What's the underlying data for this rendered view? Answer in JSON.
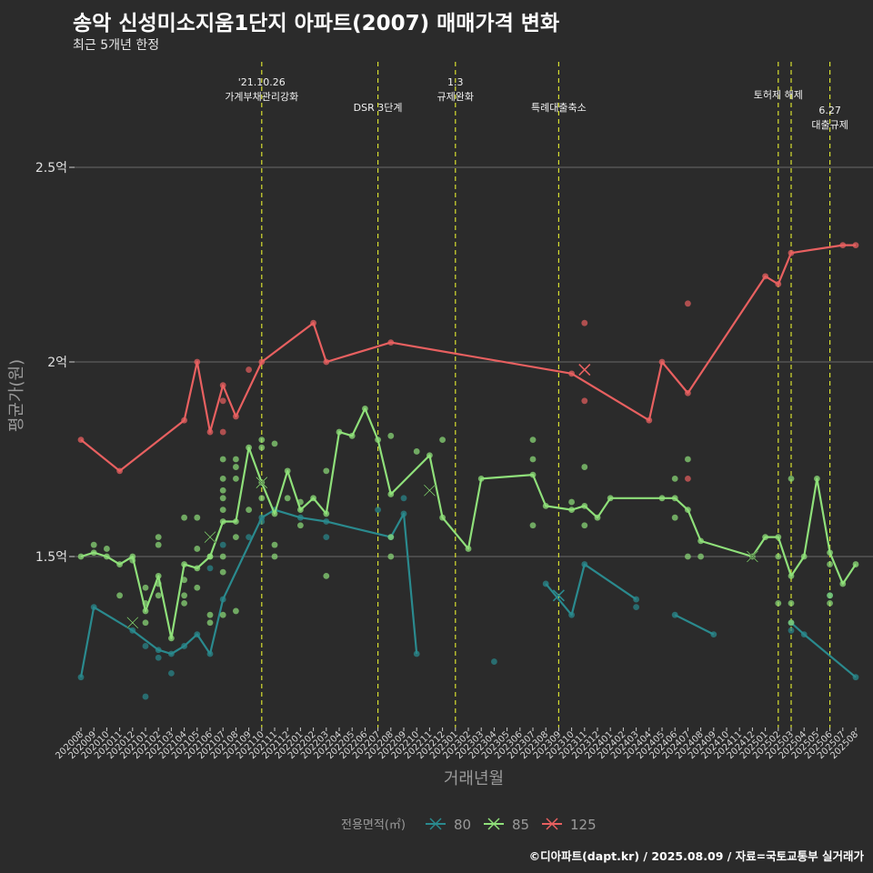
{
  "title": "송악 신성미소지움1단지 아파트(2007) 매매가격 변화",
  "subtitle": "최근 5개년 한정",
  "caption": "©디아파트(dapt.kr) / 2025.08.09 / 자료=국토교통부 실거래가",
  "chart_data": {
    "type": "line",
    "xlabel": "거래년월",
    "ylabel": "평균가(원)",
    "x_categories": [
      "202008",
      "202009",
      "202010",
      "202011",
      "202012",
      "202101",
      "202102",
      "202103",
      "202104",
      "202105",
      "202106",
      "202107",
      "202108",
      "202109",
      "202110",
      "202111",
      "202112",
      "202201",
      "202202",
      "202203",
      "202204",
      "202205",
      "202206",
      "202207",
      "202208",
      "202209",
      "202210",
      "202211",
      "202212",
      "202301",
      "202302",
      "202303",
      "202304",
      "202305",
      "202306",
      "202307",
      "202308",
      "202309",
      "202310",
      "202311",
      "202312",
      "202401",
      "202402",
      "202403",
      "202404",
      "202405",
      "202406",
      "202407",
      "202408",
      "202409",
      "202410",
      "202411",
      "202412",
      "202501",
      "202502",
      "202503",
      "202504",
      "202505",
      "202506",
      "202507",
      "202508"
    ],
    "y_ticks": [
      {
        "value": 1.5,
        "label": "1.5억"
      },
      {
        "value": 2.0,
        "label": "2억"
      },
      {
        "value": 2.5,
        "label": "2.5억"
      }
    ],
    "ylim": [
      1.07,
      2.75
    ],
    "grid": "horizontal",
    "legend": {
      "title": "전용면적(㎡)",
      "position": "bottom"
    },
    "series": [
      {
        "name": "80",
        "color": "#2a8a8e",
        "line": [
          [
            "202008",
            1.19
          ],
          [
            "202009",
            1.37
          ],
          [
            "202012",
            1.31
          ],
          [
            "202102",
            1.26
          ],
          [
            "202103",
            1.25
          ],
          [
            "202104",
            1.27
          ],
          [
            "202105",
            1.3
          ],
          [
            "202106",
            1.25
          ],
          [
            "202107",
            1.39
          ],
          [
            "202110",
            1.6
          ],
          [
            "202111",
            1.62
          ],
          [
            "202201",
            1.6
          ],
          [
            "202203",
            1.59
          ],
          [
            "202208",
            1.55
          ],
          [
            "202209",
            1.61
          ],
          [
            "202210",
            1.25
          ]
        ],
        "line2": [
          [
            "202308",
            1.43
          ],
          [
            "202310",
            1.35
          ],
          [
            "202311",
            1.48
          ],
          [
            "202403",
            1.39
          ]
        ],
        "line3": [
          [
            "202406",
            1.35
          ],
          [
            "202409",
            1.3
          ]
        ],
        "line4": [
          [
            "202503",
            1.33
          ],
          [
            "202504",
            1.3
          ],
          [
            "202508",
            1.19
          ]
        ],
        "points": [
          [
            "202101",
            1.27
          ],
          [
            "202101",
            1.14
          ],
          [
            "202102",
            1.24
          ],
          [
            "202103",
            1.2
          ],
          [
            "202106",
            1.47
          ],
          [
            "202107",
            1.53
          ],
          [
            "202109",
            1.55
          ],
          [
            "202110",
            1.59
          ],
          [
            "202203",
            1.55
          ],
          [
            "202207",
            1.62
          ],
          [
            "202209",
            1.65
          ],
          [
            "202304",
            1.23
          ],
          [
            "202403",
            1.37
          ],
          [
            "202503",
            1.31
          ],
          [
            "202506",
            1.4
          ]
        ],
        "mean_x": [
          [
            "202309",
            1.4
          ]
        ]
      },
      {
        "name": "85",
        "color": "#8fe07a",
        "line": [
          [
            "202008",
            1.5
          ],
          [
            "202009",
            1.51
          ],
          [
            "202010",
            1.5
          ],
          [
            "202011",
            1.48
          ],
          [
            "202012",
            1.5
          ],
          [
            "202101",
            1.36
          ],
          [
            "202102",
            1.45
          ],
          [
            "202103",
            1.29
          ],
          [
            "202104",
            1.48
          ],
          [
            "202105",
            1.47
          ],
          [
            "202106",
            1.5
          ],
          [
            "202107",
            1.59
          ],
          [
            "202108",
            1.59
          ],
          [
            "202109",
            1.78
          ],
          [
            "202110",
            1.69
          ],
          [
            "202111",
            1.61
          ],
          [
            "202112",
            1.72
          ],
          [
            "202201",
            1.62
          ],
          [
            "202202",
            1.65
          ],
          [
            "202203",
            1.61
          ],
          [
            "202204",
            1.82
          ],
          [
            "202205",
            1.81
          ],
          [
            "202206",
            1.88
          ],
          [
            "202207",
            1.8
          ],
          [
            "202208",
            1.66
          ],
          [
            "202211",
            1.76
          ],
          [
            "202212",
            1.6
          ],
          [
            "202302",
            1.52
          ],
          [
            "202303",
            1.7
          ],
          [
            "202307",
            1.71
          ],
          [
            "202308",
            1.63
          ],
          [
            "202310",
            1.62
          ],
          [
            "202311",
            1.63
          ],
          [
            "202312",
            1.6
          ],
          [
            "202401",
            1.65
          ],
          [
            "202405",
            1.65
          ],
          [
            "202406",
            1.65
          ],
          [
            "202407",
            1.62
          ],
          [
            "202408",
            1.54
          ],
          [
            "202412",
            1.5
          ],
          [
            "202501",
            1.55
          ],
          [
            "202502",
            1.55
          ],
          [
            "202503",
            1.45
          ],
          [
            "202504",
            1.5
          ],
          [
            "202505",
            1.7
          ],
          [
            "202506",
            1.51
          ],
          [
            "202507",
            1.43
          ],
          [
            "202508",
            1.48
          ]
        ],
        "points": [
          [
            "202009",
            1.53
          ],
          [
            "202010",
            1.52
          ],
          [
            "202011",
            1.4
          ],
          [
            "202012",
            1.49
          ],
          [
            "202101",
            1.33
          ],
          [
            "202101",
            1.38
          ],
          [
            "202101",
            1.42
          ],
          [
            "202102",
            1.55
          ],
          [
            "202102",
            1.53
          ],
          [
            "202102",
            1.43
          ],
          [
            "202102",
            1.4
          ],
          [
            "202104",
            1.6
          ],
          [
            "202104",
            1.44
          ],
          [
            "202104",
            1.4
          ],
          [
            "202104",
            1.38
          ],
          [
            "202105",
            1.6
          ],
          [
            "202105",
            1.52
          ],
          [
            "202105",
            1.42
          ],
          [
            "202106",
            1.33
          ],
          [
            "202106",
            1.35
          ],
          [
            "202106",
            1.5
          ],
          [
            "202107",
            1.62
          ],
          [
            "202107",
            1.65
          ],
          [
            "202107",
            1.67
          ],
          [
            "202107",
            1.75
          ],
          [
            "202107",
            1.7
          ],
          [
            "202107",
            1.5
          ],
          [
            "202107",
            1.46
          ],
          [
            "202107",
            1.35
          ],
          [
            "202108",
            1.75
          ],
          [
            "202108",
            1.73
          ],
          [
            "202108",
            1.7
          ],
          [
            "202108",
            1.55
          ],
          [
            "202108",
            1.36
          ],
          [
            "202109",
            1.62
          ],
          [
            "202110",
            1.8
          ],
          [
            "202110",
            1.78
          ],
          [
            "202110",
            1.65
          ],
          [
            "202111",
            1.79
          ],
          [
            "202111",
            1.53
          ],
          [
            "202111",
            1.5
          ],
          [
            "202112",
            1.65
          ],
          [
            "202201",
            1.64
          ],
          [
            "202201",
            1.58
          ],
          [
            "202203",
            1.72
          ],
          [
            "202203",
            1.45
          ],
          [
            "202208",
            1.81
          ],
          [
            "202208",
            1.5
          ],
          [
            "202208",
            1.55
          ],
          [
            "202210",
            1.77
          ],
          [
            "202212",
            1.8
          ],
          [
            "202307",
            1.8
          ],
          [
            "202307",
            1.75
          ],
          [
            "202307",
            1.58
          ],
          [
            "202310",
            1.64
          ],
          [
            "202311",
            1.73
          ],
          [
            "202311",
            1.58
          ],
          [
            "202406",
            1.7
          ],
          [
            "202406",
            1.6
          ],
          [
            "202407",
            1.75
          ],
          [
            "202407",
            1.5
          ],
          [
            "202408",
            1.5
          ],
          [
            "202502",
            1.5
          ],
          [
            "202502",
            1.38
          ],
          [
            "202503",
            1.7
          ],
          [
            "202503",
            1.38
          ],
          [
            "202503",
            1.33
          ],
          [
            "202506",
            1.48
          ],
          [
            "202506",
            1.4
          ],
          [
            "202506",
            1.38
          ]
        ],
        "mean_x": [
          [
            "202012",
            1.33
          ],
          [
            "202106",
            1.55
          ],
          [
            "202110",
            1.69
          ],
          [
            "202211",
            1.67
          ],
          [
            "202412",
            1.5
          ]
        ]
      },
      {
        "name": "125",
        "color": "#e86060",
        "line": [
          [
            "202008",
            1.8
          ],
          [
            "202011",
            1.72
          ],
          [
            "202104",
            1.85
          ],
          [
            "202105",
            2.0
          ],
          [
            "202106",
            1.82
          ],
          [
            "202107",
            1.94
          ],
          [
            "202108",
            1.86
          ],
          [
            "202110",
            2.0
          ],
          [
            "202202",
            2.1
          ],
          [
            "202203",
            2.0
          ],
          [
            "202208",
            2.05
          ],
          [
            "202310",
            1.97
          ],
          [
            "202404",
            1.85
          ],
          [
            "202405",
            2.0
          ],
          [
            "202407",
            1.92
          ],
          [
            "202501",
            2.22
          ],
          [
            "202502",
            2.2
          ],
          [
            "202503",
            2.28
          ],
          [
            "202507",
            2.3
          ],
          [
            "202508",
            2.3
          ]
        ],
        "points": [
          [
            "202107",
            1.9
          ],
          [
            "202107",
            1.82
          ],
          [
            "202109",
            1.98
          ],
          [
            "202311",
            2.1
          ],
          [
            "202311",
            1.9
          ],
          [
            "202407",
            2.15
          ],
          [
            "202407",
            1.7
          ]
        ],
        "mean_x": [
          [
            "202311",
            1.98
          ]
        ]
      }
    ],
    "annotations": [
      {
        "x": "202110",
        "lines": [
          "'21.10.26",
          "가계부채관리강화"
        ],
        "row": 0
      },
      {
        "x": "202207",
        "lines": [
          "DSR 3단계"
        ],
        "row": 1
      },
      {
        "x": "202301",
        "lines": [
          "1.3",
          "규제완화"
        ],
        "row": 0
      },
      {
        "x": "202309",
        "lines": [
          "특례대출축소"
        ],
        "row": 1
      },
      {
        "x": "202502",
        "lines": [
          "토허제 해제"
        ],
        "row": 0.5,
        "anchor": "202502"
      },
      {
        "x": "202503",
        "lines": [],
        "row": 0
      },
      {
        "x": "202506",
        "lines": [
          "6.27",
          "대출규제"
        ],
        "row": 1.1
      }
    ]
  }
}
